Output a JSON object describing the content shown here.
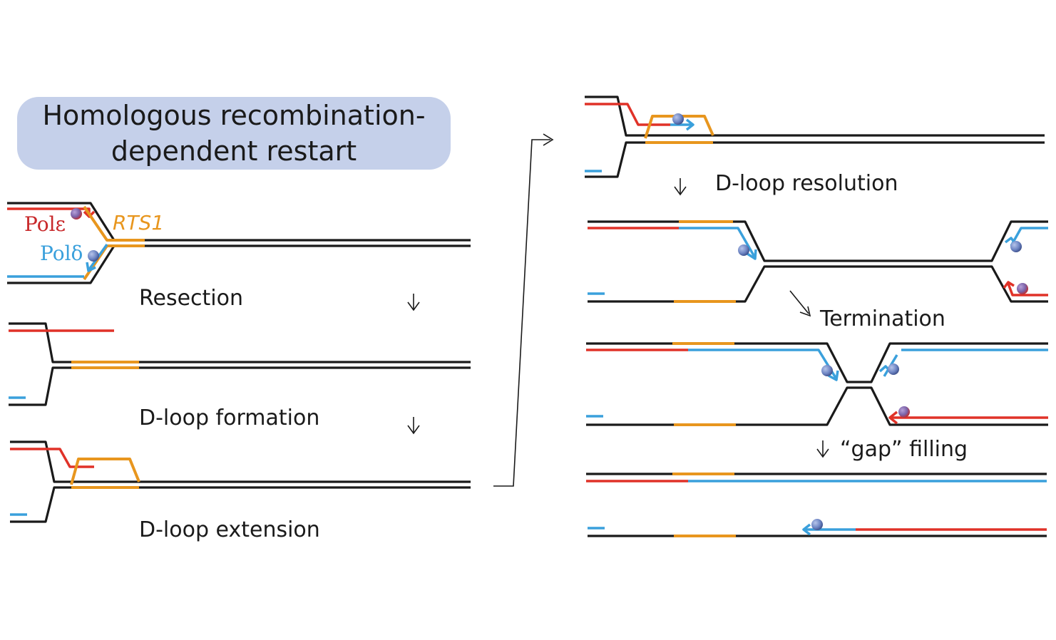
{
  "title": {
    "line1": "Homologous recombination-",
    "line2": "dependent restart"
  },
  "labels": {
    "pol_epsilon": "Polε",
    "pol_delta": "Polδ",
    "rts1": "RTS1"
  },
  "steps": {
    "resection": "Resection",
    "dloop_formation": "D-loop formation",
    "dloop_extension": "D-loop extension",
    "dloop_resolution": "D-loop resolution",
    "termination": "Termination",
    "gap_filling": "“gap” filling"
  },
  "colors": {
    "dna": "#1a1a1a",
    "leading": "#e03228",
    "rts1": "#e8961e",
    "lagging": "#3aa0dc",
    "title_box": "#c5d0ea",
    "polymerase": "#6f86c4"
  }
}
